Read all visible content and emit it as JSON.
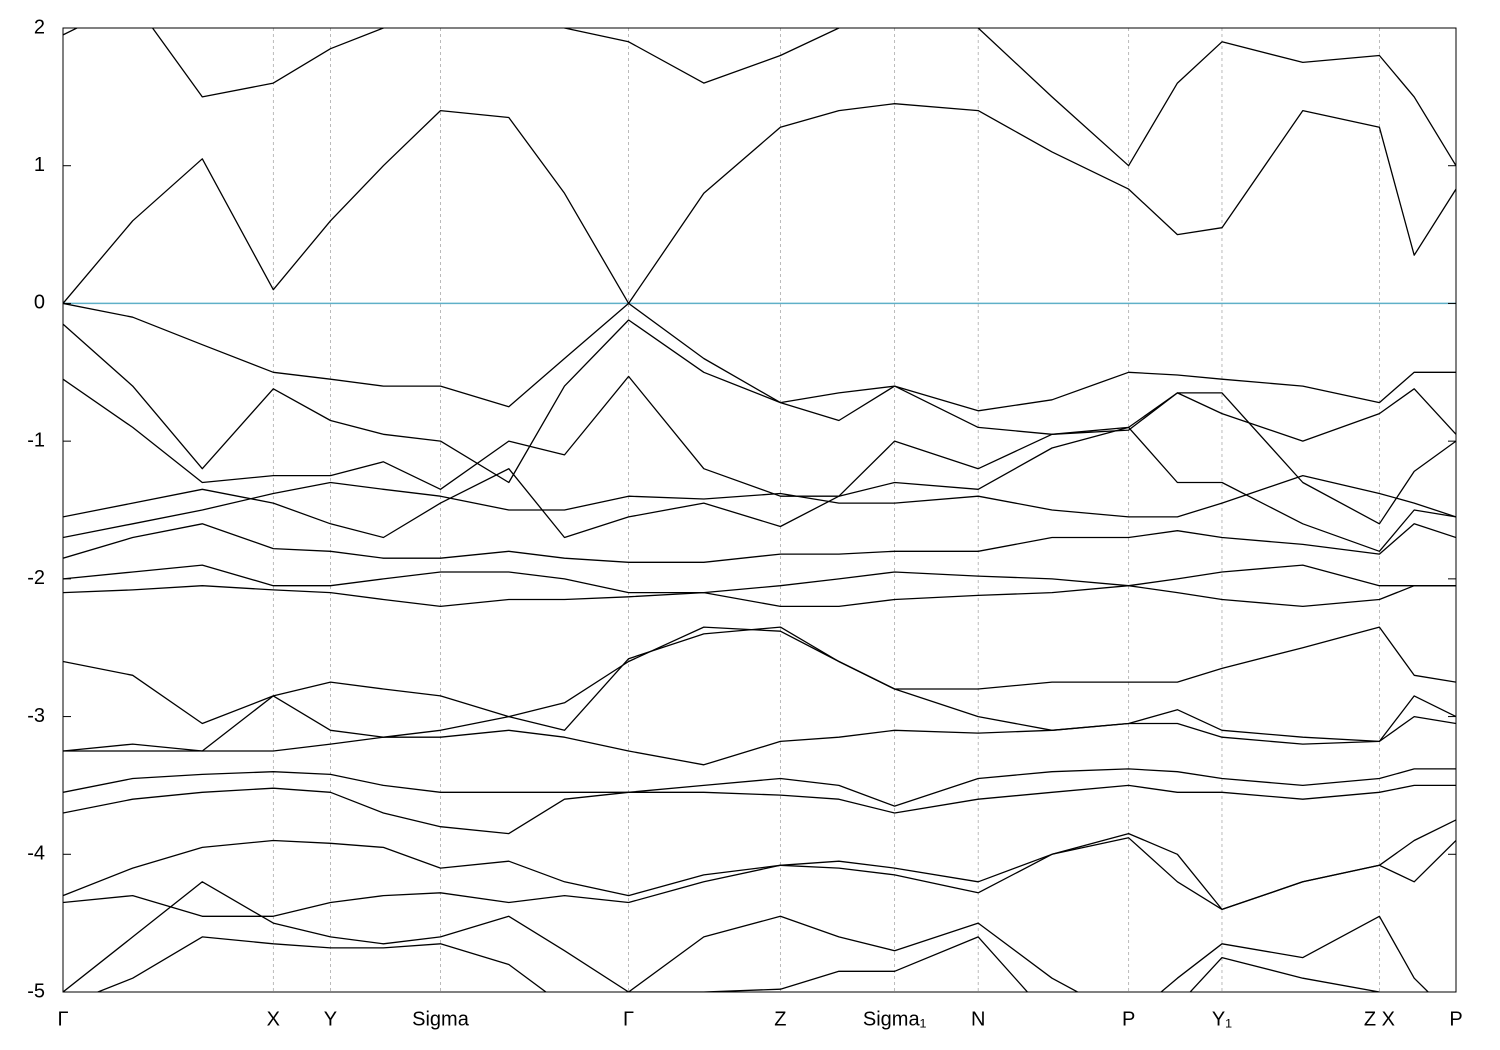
{
  "chart_data": {
    "type": "line",
    "x": [
      0,
      0.05,
      0.1,
      0.151,
      0.192,
      0.23,
      0.271,
      0.32,
      0.36,
      0.406,
      0.46,
      0.515,
      0.557,
      0.597,
      0.657,
      0.71,
      0.765,
      0.8,
      0.832,
      0.89,
      0.945,
      0.97,
      1.0
    ],
    "series": [
      {
        "values": [
          0,
          0.6,
          1.05,
          0.1,
          0.6,
          1.0,
          1.4,
          1.35,
          0.8,
          0,
          0.8,
          1.28,
          1.4,
          1.45,
          1.4,
          1.1,
          0.83,
          0.5,
          0.55,
          1.4,
          1.28,
          0.35,
          0.83
        ]
      },
      {
        "values": [
          1.95,
          2.2,
          1.5,
          1.6,
          1.85,
          2.0,
          2.1,
          2.1,
          2.0,
          1.9,
          1.6,
          1.8,
          2.0,
          2.2,
          2.0,
          1.5,
          1.0,
          1.6,
          1.9,
          1.75,
          1.8,
          1.5,
          1.0
        ]
      },
      {
        "values": [
          0,
          -0.1,
          -0.3,
          -0.5,
          -0.55,
          -0.6,
          -0.6,
          -0.75,
          -0.4,
          0,
          -0.4,
          -0.72,
          -0.65,
          -0.6,
          -0.78,
          -0.7,
          -0.5,
          -0.52,
          -0.55,
          -0.6,
          -0.72,
          -0.5,
          -0.5
        ]
      },
      {
        "values": [
          -0.15,
          -0.6,
          -1.2,
          -0.62,
          -0.85,
          -0.95,
          -1.0,
          -1.3,
          -0.6,
          -0.12,
          -0.5,
          -0.72,
          -0.85,
          -0.6,
          -0.9,
          -0.95,
          -0.9,
          -0.65,
          -0.8,
          -1.0,
          -0.8,
          -0.62,
          -0.95
        ]
      },
      {
        "values": [
          -0.55,
          -0.9,
          -1.3,
          -1.25,
          -1.25,
          -1.15,
          -1.35,
          -1.0,
          -1.1,
          -0.53,
          -1.2,
          -1.4,
          -1.4,
          -1.0,
          -1.2,
          -0.95,
          -0.92,
          -0.65,
          -0.65,
          -1.3,
          -1.6,
          -1.22,
          -1.0
        ]
      },
      {
        "values": [
          -1.55,
          -1.45,
          -1.35,
          -1.45,
          -1.6,
          -1.7,
          -1.45,
          -1.2,
          -1.7,
          -1.55,
          -1.45,
          -1.62,
          -1.4,
          -1.3,
          -1.35,
          -1.05,
          -0.9,
          -1.3,
          -1.3,
          -1.6,
          -1.8,
          -1.5,
          -1.55
        ]
      },
      {
        "values": [
          -1.7,
          -1.6,
          -1.5,
          -1.38,
          -1.3,
          -1.35,
          -1.4,
          -1.5,
          -1.5,
          -1.4,
          -1.42,
          -1.38,
          -1.45,
          -1.45,
          -1.4,
          -1.5,
          -1.55,
          -1.55,
          -1.45,
          -1.25,
          -1.38,
          -1.45,
          -1.55
        ]
      },
      {
        "values": [
          -1.85,
          -1.7,
          -1.6,
          -1.78,
          -1.8,
          -1.85,
          -1.85,
          -1.8,
          -1.85,
          -1.88,
          -1.88,
          -1.82,
          -1.82,
          -1.8,
          -1.8,
          -1.7,
          -1.7,
          -1.65,
          -1.7,
          -1.75,
          -1.82,
          -1.6,
          -1.7
        ]
      },
      {
        "values": [
          -2.0,
          -1.95,
          -1.9,
          -2.05,
          -2.05,
          -2.0,
          -1.95,
          -1.95,
          -2.0,
          -2.1,
          -2.1,
          -2.05,
          -2.0,
          -1.95,
          -1.98,
          -2.0,
          -2.05,
          -2.0,
          -1.95,
          -1.9,
          -2.05,
          -2.05,
          -2.05
        ]
      },
      {
        "values": [
          -2.1,
          -2.08,
          -2.05,
          -2.08,
          -2.1,
          -2.15,
          -2.2,
          -2.15,
          -2.15,
          -2.13,
          -2.1,
          -2.2,
          -2.2,
          -2.15,
          -2.12,
          -2.1,
          -2.05,
          -2.1,
          -2.15,
          -2.2,
          -2.15,
          -2.05,
          -2.05
        ]
      },
      {
        "values": [
          -2.6,
          -2.7,
          -3.05,
          -2.85,
          -2.75,
          -2.8,
          -2.85,
          -3.0,
          -3.1,
          -2.58,
          -2.4,
          -2.35,
          -2.6,
          -2.8,
          -2.8,
          -2.75,
          -2.75,
          -2.75,
          -2.65,
          -2.5,
          -2.35,
          -2.7,
          -2.75
        ]
      },
      {
        "values": [
          -3.25,
          -3.2,
          -3.25,
          -2.85,
          -3.1,
          -3.15,
          -3.1,
          -3.0,
          -2.9,
          -2.6,
          -2.35,
          -2.38,
          -2.6,
          -2.8,
          -3.0,
          -3.1,
          -3.05,
          -2.95,
          -3.1,
          -3.15,
          -3.18,
          -2.85,
          -3.0
        ]
      },
      {
        "values": [
          -3.25,
          -3.25,
          -3.25,
          -3.25,
          -3.2,
          -3.15,
          -3.15,
          -3.1,
          -3.15,
          -3.25,
          -3.35,
          -3.18,
          -3.15,
          -3.1,
          -3.12,
          -3.1,
          -3.05,
          -3.05,
          -3.15,
          -3.2,
          -3.18,
          -3.0,
          -3.05
        ]
      },
      {
        "values": [
          -3.55,
          -3.45,
          -3.42,
          -3.4,
          -3.42,
          -3.5,
          -3.55,
          -3.55,
          -3.55,
          -3.55,
          -3.5,
          -3.45,
          -3.5,
          -3.65,
          -3.45,
          -3.4,
          -3.38,
          -3.4,
          -3.45,
          -3.5,
          -3.45,
          -3.38,
          -3.38
        ]
      },
      {
        "values": [
          -3.7,
          -3.6,
          -3.55,
          -3.52,
          -3.55,
          -3.7,
          -3.8,
          -3.85,
          -3.6,
          -3.55,
          -3.55,
          -3.57,
          -3.6,
          -3.7,
          -3.6,
          -3.55,
          -3.5,
          -3.55,
          -3.55,
          -3.6,
          -3.55,
          -3.5,
          -3.5
        ]
      },
      {
        "values": [
          -4.3,
          -4.1,
          -3.95,
          -3.9,
          -3.92,
          -3.95,
          -4.1,
          -4.05,
          -4.2,
          -4.3,
          -4.15,
          -4.08,
          -4.05,
          -4.1,
          -4.2,
          -4.0,
          -3.85,
          -4.0,
          -4.4,
          -4.2,
          -4.08,
          -3.9,
          -3.75
        ]
      },
      {
        "values": [
          -4.35,
          -4.3,
          -4.45,
          -4.45,
          -4.35,
          -4.3,
          -4.28,
          -4.35,
          -4.3,
          -4.35,
          -4.2,
          -4.08,
          -4.1,
          -4.15,
          -4.28,
          -4.0,
          -3.88,
          -4.2,
          -4.4,
          -4.2,
          -4.08,
          -4.2,
          -3.9
        ]
      },
      {
        "values": [
          -5.0,
          -4.6,
          -4.2,
          -4.5,
          -4.6,
          -4.65,
          -4.6,
          -4.45,
          -4.7,
          -5.0,
          -4.6,
          -4.45,
          -4.6,
          -4.7,
          -4.5,
          -4.9,
          -5.2,
          -4.9,
          -4.65,
          -4.75,
          -4.45,
          -4.9,
          -5.2
        ]
      },
      {
        "values": [
          -5.1,
          -4.9,
          -4.6,
          -4.65,
          -4.68,
          -4.68,
          -4.65,
          -4.8,
          -5.1,
          -5.0,
          -5.0,
          -4.98,
          -4.85,
          -4.85,
          -4.6,
          -5.2,
          -5.3,
          -5.1,
          -4.75,
          -4.9,
          -5.0,
          -5.2,
          -5.3
        ]
      }
    ],
    "color": "#000000",
    "hlines": [
      {
        "value": 0,
        "color": "#5fb0c8"
      }
    ],
    "xlim": [
      0,
      1.0
    ],
    "xticks": [
      {
        "value": 0,
        "label": "Γ"
      },
      {
        "value": 0.151,
        "label": "X"
      },
      {
        "value": 0.192,
        "label": "Y"
      },
      {
        "value": 0.271,
        "label": "Sigma"
      },
      {
        "value": 0.406,
        "label": "Γ"
      },
      {
        "value": 0.515,
        "label": "Z"
      },
      {
        "value": 0.597,
        "label": "Sigma₁"
      },
      {
        "value": 0.657,
        "label": "N"
      },
      {
        "value": 0.765,
        "label": "P"
      },
      {
        "value": 0.832,
        "label": "Y₁"
      },
      {
        "value": 0.945,
        "label": "Z X"
      },
      {
        "value": 1.0,
        "label": "P"
      }
    ],
    "ylim": [
      -5,
      2
    ],
    "yticks": [
      -5,
      -4,
      -3,
      -2,
      -1,
      0,
      1,
      2
    ],
    "grid": "x"
  }
}
